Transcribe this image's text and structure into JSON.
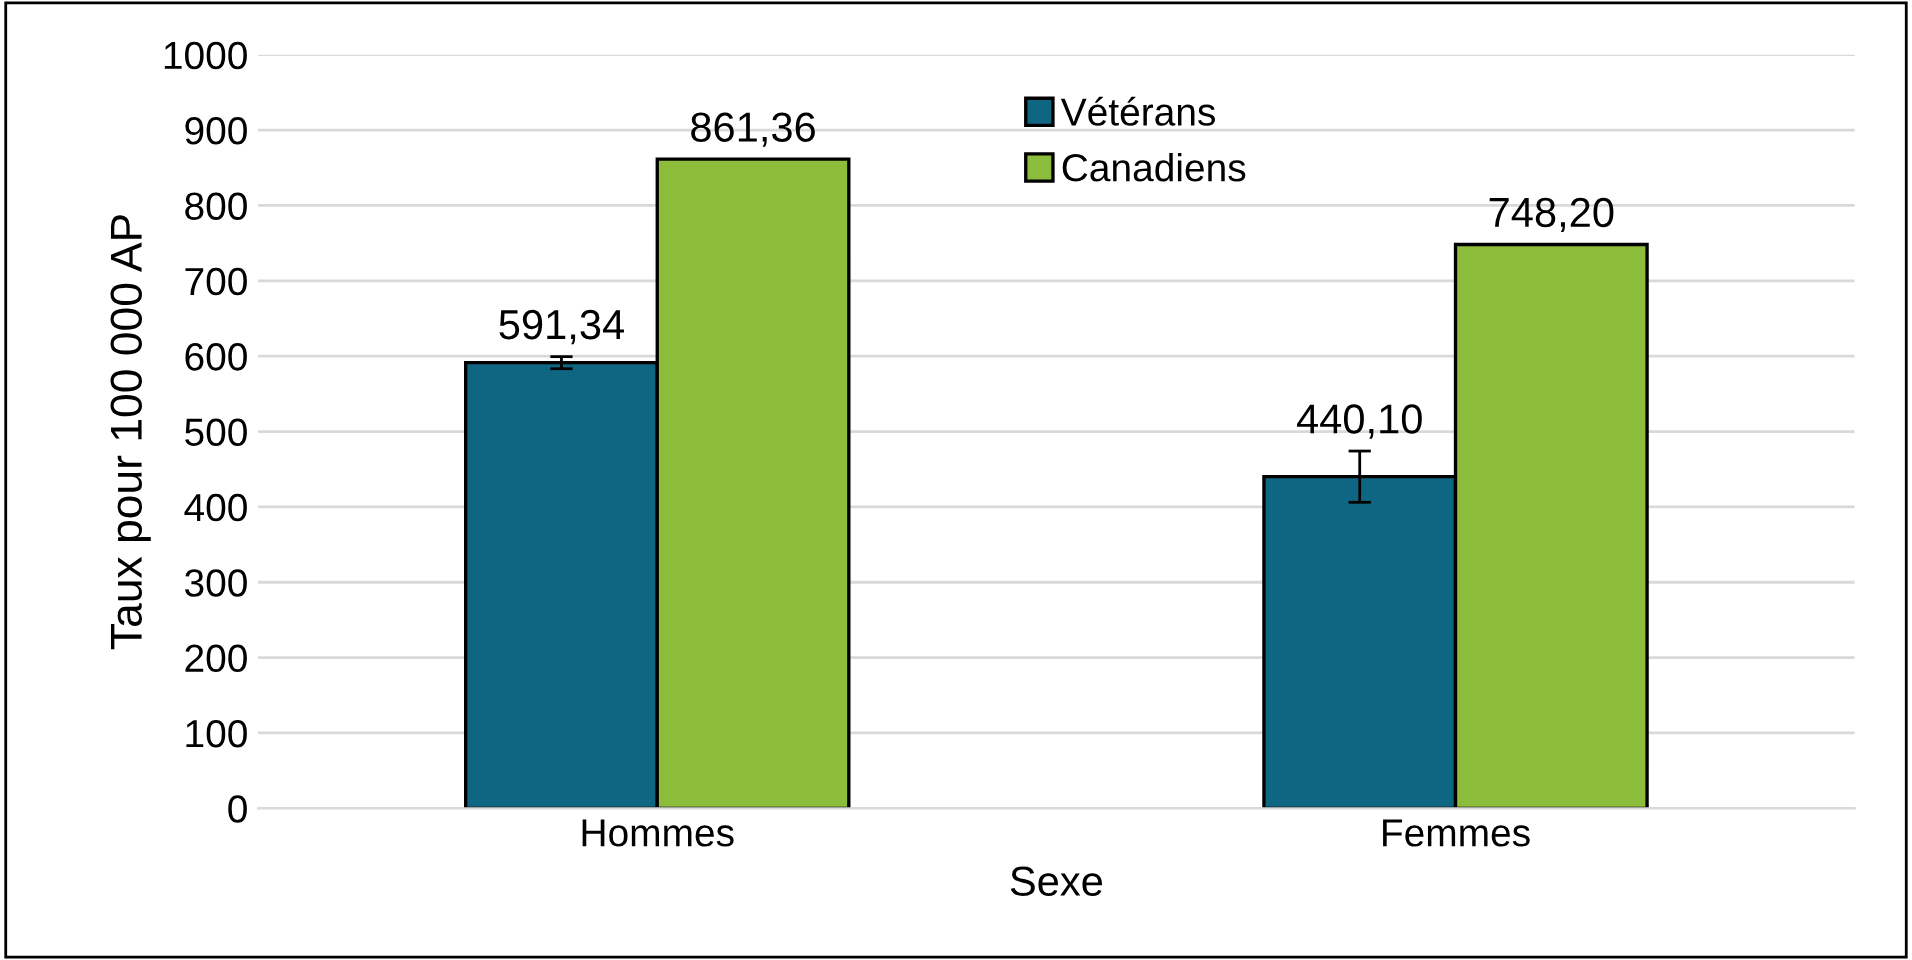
{
  "chart_data": {
    "type": "bar",
    "xlabel": "Sexe",
    "ylabel": "Taux pour 100 000 AP",
    "categories": [
      "Hommes",
      "Femmes"
    ],
    "series": [
      {
        "name": "Vétérans",
        "color": "#0f6682",
        "values": [
          591.34,
          440.1
        ],
        "value_labels": [
          "591,34",
          "440,10"
        ],
        "errors": [
          8,
          34
        ]
      },
      {
        "name": "Canadiens",
        "color": "#8cbd3a",
        "values": [
          861.36,
          748.2
        ],
        "value_labels": [
          "861,36",
          "748,20"
        ]
      }
    ],
    "ylim": [
      0,
      1000
    ],
    "yticks": [
      0,
      100,
      200,
      300,
      400,
      500,
      600,
      700,
      800,
      900,
      1000
    ],
    "grid": "y",
    "legend": "top"
  }
}
